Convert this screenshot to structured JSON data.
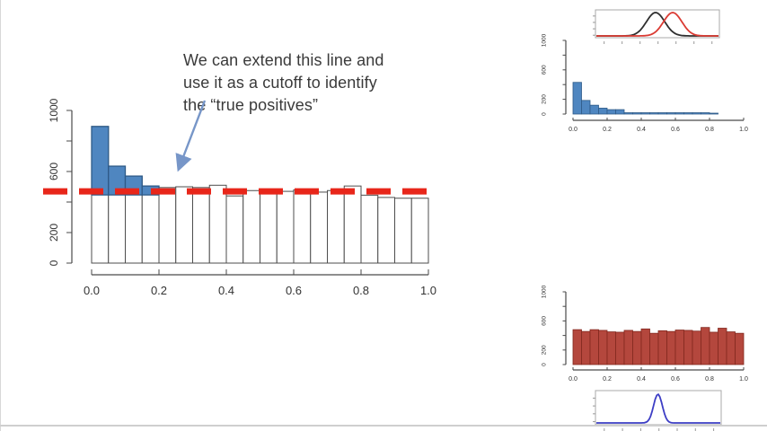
{
  "annotation": {
    "lines": [
      "We can extend this line and",
      "use it as a cutoff to identify",
      "the “true positives”"
    ]
  },
  "colors": {
    "blue_bar": "#4f86c0",
    "blue_bar_border": "#2e5a87",
    "white_bar": "#ffffff",
    "bar_border": "#4d4d4d",
    "red_line": "#e8261a",
    "maroon_bar": "#b4473d",
    "maroon_bar_border": "#82281f",
    "black_curve": "#2f2f2f",
    "red_curve": "#da3b33",
    "blue_curve": "#3d3ec5",
    "arrow": "#7796c8",
    "axis": "#4a4a4a",
    "tick_text": "#333333",
    "mini_box_border": "#a8a8a8",
    "mini_tick": "#999999"
  },
  "chart_data": [
    {
      "id": "main-histogram",
      "type": "bar",
      "title": "",
      "xlabel": "",
      "ylabel": "",
      "xlim": [
        0,
        1
      ],
      "ylim": [
        0,
        1000
      ],
      "bin_width": 0.05,
      "values": [
        895,
        635,
        570,
        505,
        495,
        500,
        495,
        510,
        440,
        475,
        480,
        470,
        480,
        465,
        475,
        505,
        445,
        430,
        425,
        425
      ],
      "highlight": {
        "bins": 4,
        "meaning": "true positives above cutoff"
      },
      "cutoff_value": 470,
      "cutoff_style": "red-dashed",
      "x_ticks": [
        0.0,
        0.2,
        0.4,
        0.6,
        0.8,
        1.0
      ],
      "x_tick_labels": [
        "0.0",
        "0.2",
        "0.4",
        "0.6",
        "0.8",
        "1.0"
      ],
      "y_ticks": [
        0,
        200,
        400,
        600,
        800,
        1000
      ],
      "y_tick_labels": [
        "0",
        "200",
        "",
        "600",
        "",
        "1000"
      ]
    },
    {
      "id": "top-right-densities",
      "type": "line",
      "xlim": [
        0,
        1
      ],
      "series": [
        {
          "name": "black-density",
          "color_key": "black_curve",
          "mean": 0.485,
          "sd": 0.075
        },
        {
          "name": "red-density",
          "color_key": "red_curve",
          "mean": 0.625,
          "sd": 0.075
        }
      ]
    },
    {
      "id": "top-right-histogram",
      "type": "bar",
      "xlim": [
        0,
        1
      ],
      "ylim": [
        0,
        1000
      ],
      "bin_width": 0.05,
      "values": [
        430,
        185,
        120,
        80,
        60,
        60,
        18,
        18,
        18,
        18,
        18,
        18,
        18,
        18,
        18,
        18,
        12,
        0,
        0,
        0
      ],
      "x_ticks": [
        0.0,
        0.2,
        0.4,
        0.6,
        0.8,
        1.0
      ],
      "x_tick_labels": [
        "0.0",
        "0.2",
        "0.4",
        "0.6",
        "0.8",
        "1.0"
      ],
      "y_ticks": [
        0,
        200,
        400,
        600,
        800,
        1000
      ],
      "y_tick_labels": [
        "0",
        "200",
        "",
        "600",
        "",
        "1000"
      ]
    },
    {
      "id": "bottom-right-histogram",
      "type": "bar",
      "xlim": [
        0,
        1
      ],
      "ylim": [
        0,
        1000
      ],
      "bin_width": 0.05,
      "values": [
        480,
        455,
        480,
        470,
        450,
        445,
        470,
        455,
        490,
        430,
        465,
        455,
        475,
        470,
        460,
        510,
        445,
        500,
        450,
        430
      ],
      "x_ticks": [
        0.0,
        0.2,
        0.4,
        0.6,
        0.8,
        1.0
      ],
      "x_tick_labels": [
        "0.0",
        "0.2",
        "0.4",
        "0.6",
        "0.8",
        "1.0"
      ],
      "y_ticks": [
        0,
        200,
        400,
        600,
        800,
        1000
      ],
      "y_tick_labels": [
        "0",
        "200",
        "",
        "600",
        "",
        "1000"
      ]
    },
    {
      "id": "bottom-right-density",
      "type": "line",
      "xlim": [
        0,
        1
      ],
      "series": [
        {
          "name": "blue-density",
          "color_key": "blue_curve",
          "mean": 0.497,
          "sd": 0.035
        }
      ]
    }
  ]
}
